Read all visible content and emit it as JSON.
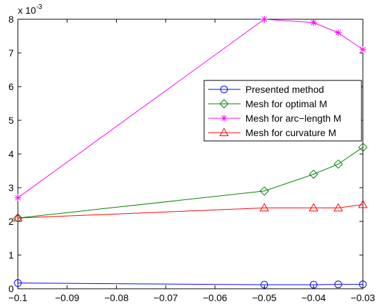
{
  "chart_data": {
    "type": "line",
    "x": [
      -0.1,
      -0.05,
      -0.04,
      -0.035,
      -0.03
    ],
    "xlim": [
      -0.1,
      -0.03
    ],
    "ylim": [
      0,
      8
    ],
    "y_multiplier_base": "x 10",
    "y_multiplier_exp": "-3",
    "xticks": [
      -0.1,
      -0.09,
      -0.08,
      -0.07,
      -0.06,
      -0.05,
      -0.04,
      -0.03
    ],
    "xtick_labels": [
      "-0.1",
      "-0.09",
      "-0.08",
      "-0.07",
      "-0.06",
      "-0.05",
      "-0.04",
      "-0.03"
    ],
    "yticks": [
      0,
      1,
      2,
      3,
      4,
      5,
      6,
      7,
      8
    ],
    "ytick_labels": [
      "0",
      "1",
      "2",
      "3",
      "4",
      "5",
      "6",
      "7",
      "8"
    ],
    "grid": false,
    "legend_position": "right, upper-middle",
    "series": [
      {
        "name": "Presented method",
        "color": "#0000ff",
        "marker": "circle",
        "values": [
          0.17,
          0.12,
          0.12,
          0.13,
          0.13
        ]
      },
      {
        "name": "Mesh for optimal M",
        "color": "#008000",
        "marker": "diamond",
        "values": [
          2.1,
          2.9,
          3.4,
          3.7,
          4.2
        ]
      },
      {
        "name": "Mesh for arc−length M",
        "color": "#ff00ff",
        "marker": "star",
        "values": [
          2.7,
          8.0,
          7.9,
          7.6,
          7.1
        ]
      },
      {
        "name": "Mesh for curvature M",
        "color": "#ff0000",
        "marker": "triangle",
        "values": [
          2.1,
          2.4,
          2.4,
          2.4,
          2.5
        ]
      }
    ]
  }
}
